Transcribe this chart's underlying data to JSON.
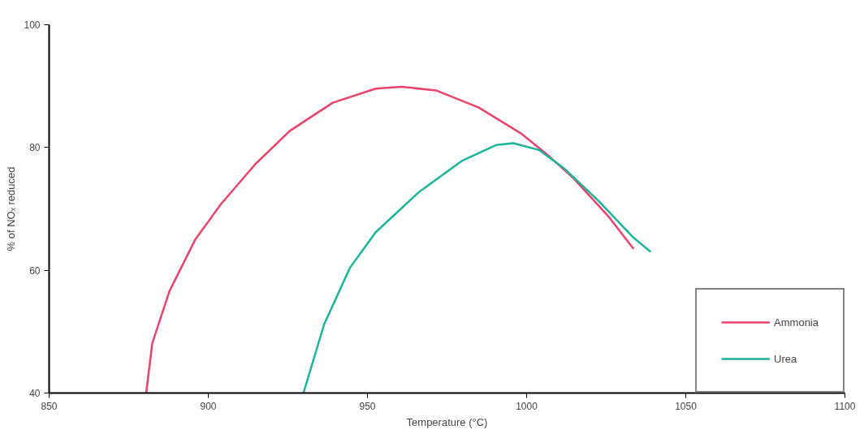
{
  "chart_data": {
    "type": "line",
    "xlabel": "Temperature (°C)",
    "ylabel": "% of NOₓ reduced",
    "xlim": [
      850,
      1100
    ],
    "ylim": [
      40,
      100
    ],
    "xticks": [
      850,
      900,
      950,
      1000,
      1050,
      1100
    ],
    "yticks": [
      40,
      60,
      80,
      100
    ],
    "grid": false,
    "legend": "bottom right",
    "marker": "none",
    "line_style": "solid",
    "series": [
      {
        "name": "Ammonia",
        "color": "#e8436a",
        "x": [
          880.5,
          882.4,
          887.8,
          895.9,
          904.0,
          914.8,
          925.6,
          939.1,
          952.6,
          960.7,
          971.5,
          985.0,
          998.5,
          1006.6,
          1014.7,
          1025.5,
          1033.6
        ],
        "values": [
          40,
          48.1,
          56.6,
          65.0,
          70.8,
          77.3,
          82.7,
          87.3,
          89.6,
          89.9,
          89.3,
          86.5,
          82.2,
          78.8,
          75.0,
          68.9,
          63.5
        ]
      },
      {
        "name": "Urea",
        "color": "#1ab39a",
        "x": [
          929.9,
          936.4,
          944.5,
          952.6,
          966.1,
          979.6,
          990.4,
          995.8,
          1003.9,
          1012.0,
          1022.8,
          1033.6,
          1039.0
        ],
        "values": [
          40,
          51.2,
          60.4,
          66.2,
          72.7,
          77.8,
          80.4,
          80.7,
          79.6,
          76.5,
          71.2,
          65.3,
          63.0
        ]
      }
    ]
  }
}
